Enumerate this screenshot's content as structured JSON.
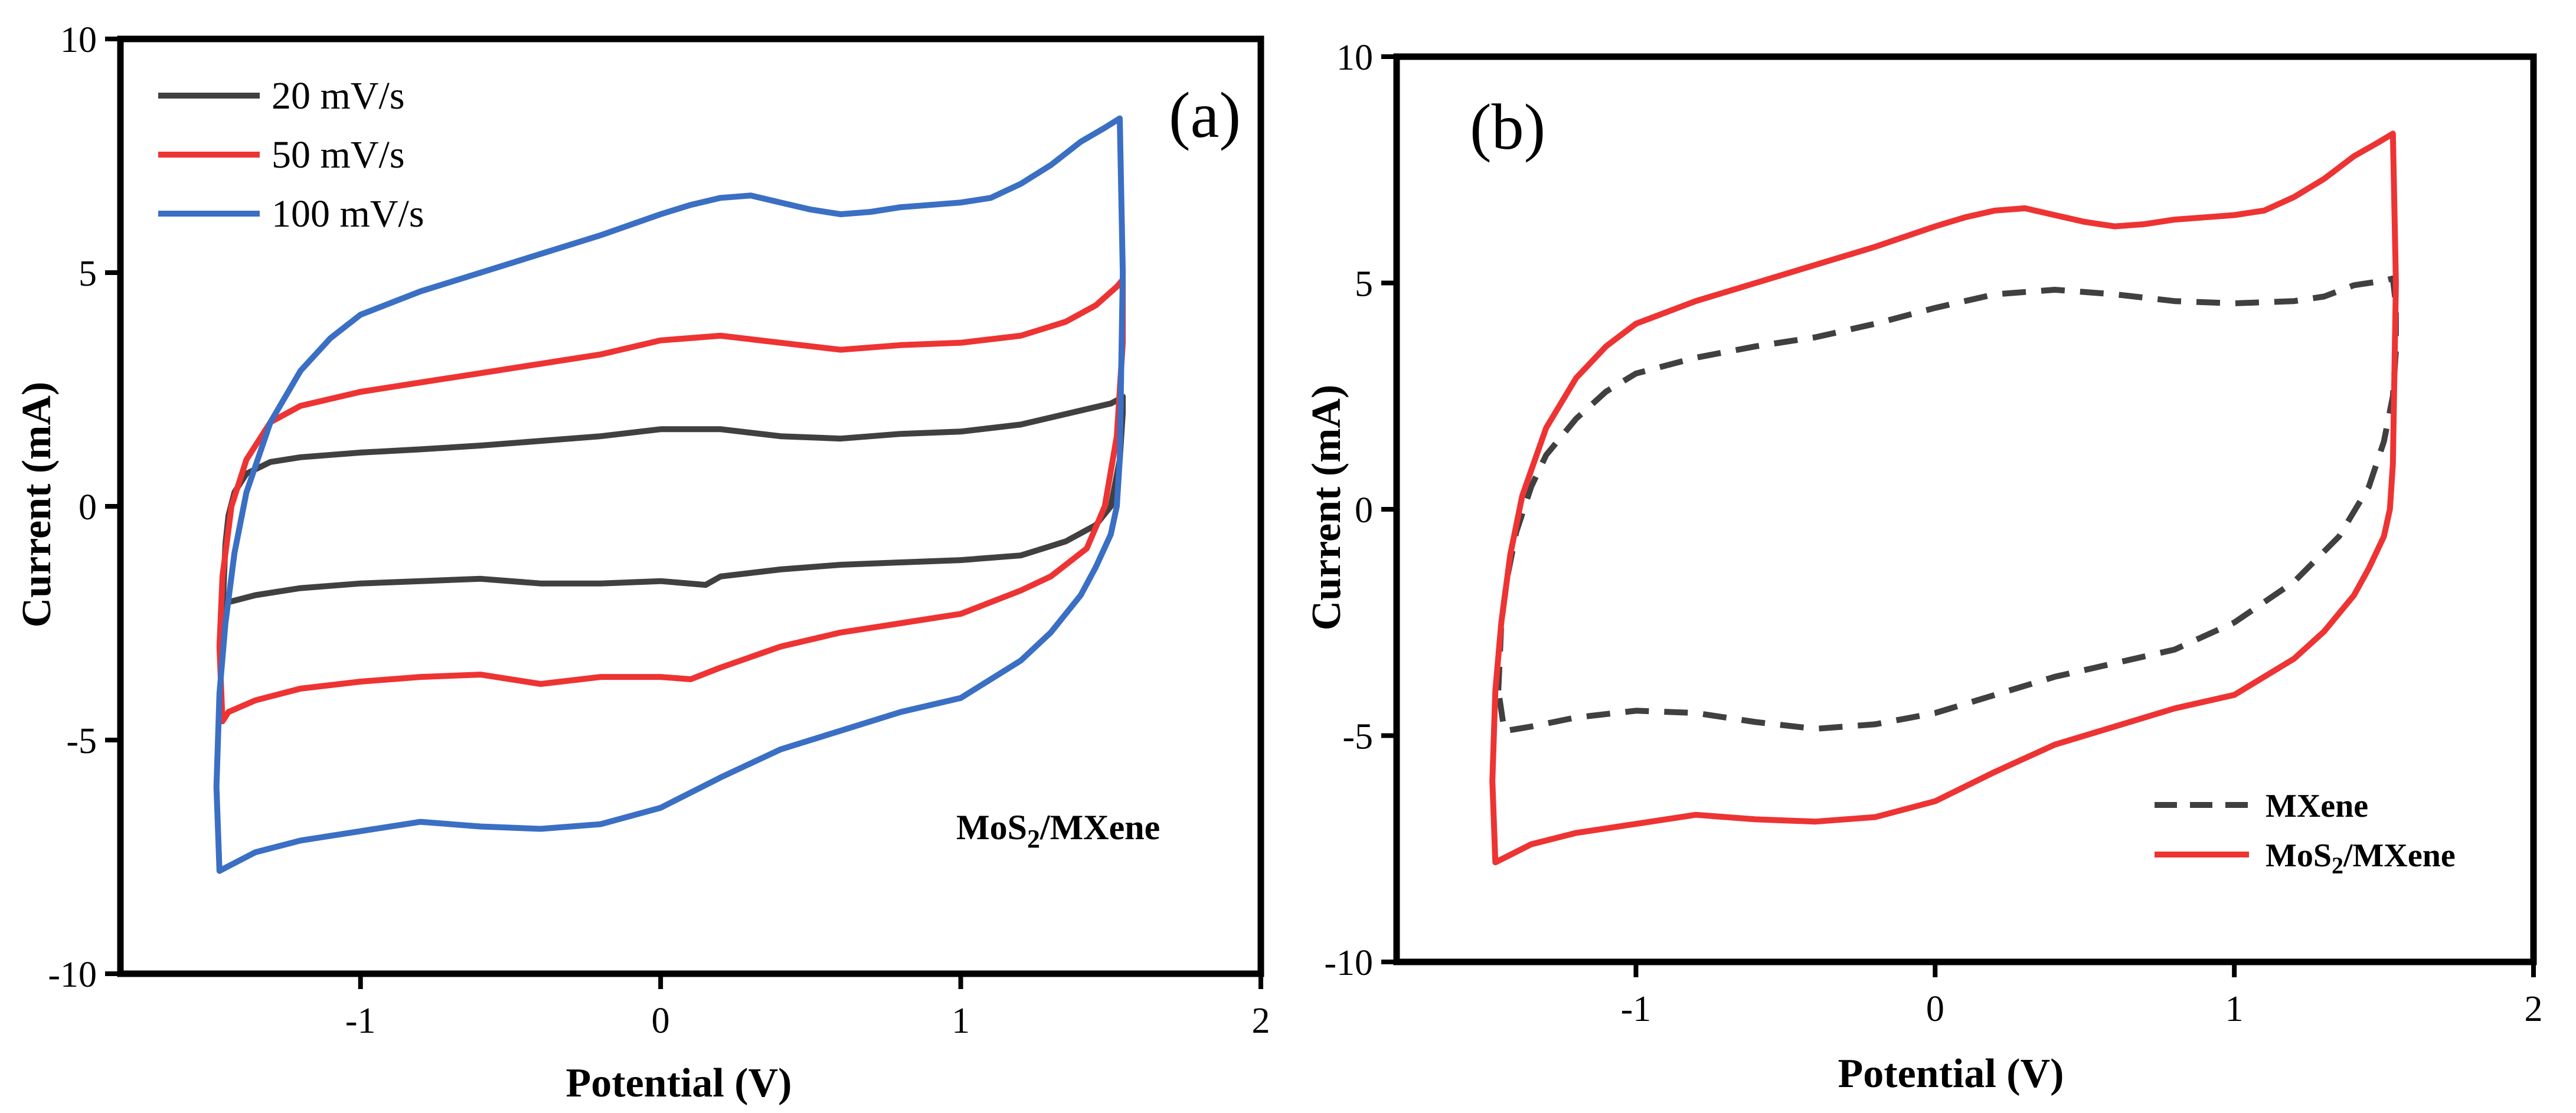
{
  "chart_data": [
    {
      "panel": "(a)",
      "type": "line",
      "xlabel": "Potential (V)",
      "ylabel": "Current (mA)",
      "xlim": [
        -1.8,
        2
      ],
      "ylim": [
        -10,
        10
      ],
      "xticks": [
        -1,
        0,
        1,
        2
      ],
      "yticks": [
        -10,
        -5,
        0,
        5,
        10
      ],
      "xtick_labels": [
        "-1",
        "0",
        "1",
        "2"
      ],
      "ytick_labels": [
        "-10",
        "-5",
        "0",
        "5",
        "10"
      ],
      "legend_position": "top-left",
      "annotation": {
        "prefix": "MoS",
        "sub": "2",
        "suffix": "/MXene"
      },
      "series": [
        {
          "name": "20 mV/s",
          "color": "#404040",
          "dash": "solid",
          "x": [
            -1.45,
            -1.44,
            -1.42,
            -1.38,
            -1.3,
            -1.2,
            -1.0,
            -0.8,
            -0.6,
            -0.4,
            -0.2,
            0.0,
            0.2,
            0.4,
            0.6,
            0.8,
            1.0,
            1.2,
            1.4,
            1.5,
            1.53,
            1.54,
            1.54,
            1.53,
            1.5,
            1.45,
            1.35,
            1.2,
            1.0,
            0.8,
            0.6,
            0.4,
            0.2,
            0.15,
            0.0,
            -0.2,
            -0.4,
            -0.6,
            -0.8,
            -1.0,
            -1.2,
            -1.35,
            -1.44,
            -1.46,
            -1.46,
            -1.45
          ],
          "y": [
            -0.8,
            -0.2,
            0.3,
            0.7,
            0.95,
            1.05,
            1.15,
            1.22,
            1.3,
            1.4,
            1.5,
            1.65,
            1.65,
            1.5,
            1.45,
            1.55,
            1.6,
            1.75,
            2.05,
            2.2,
            2.3,
            2.35,
            2.0,
            1.0,
            0.0,
            -0.4,
            -0.75,
            -1.05,
            -1.15,
            -1.2,
            -1.25,
            -1.35,
            -1.5,
            -1.68,
            -1.6,
            -1.65,
            -1.65,
            -1.55,
            -1.6,
            -1.65,
            -1.75,
            -1.9,
            -2.05,
            -2.2,
            -2.3,
            -0.8
          ]
        },
        {
          "name": "50 mV/s",
          "color": "#ee3333",
          "dash": "solid",
          "x": [
            -1.47,
            -1.46,
            -1.43,
            -1.38,
            -1.3,
            -1.2,
            -1.0,
            -0.8,
            -0.6,
            -0.4,
            -0.2,
            0.0,
            0.2,
            0.4,
            0.6,
            0.8,
            1.0,
            1.2,
            1.35,
            1.45,
            1.52,
            1.54,
            1.54,
            1.52,
            1.48,
            1.42,
            1.3,
            1.2,
            1.0,
            0.8,
            0.6,
            0.4,
            0.2,
            0.1,
            0.0,
            -0.2,
            -0.4,
            -0.6,
            -0.8,
            -1.0,
            -1.2,
            -1.35,
            -1.44,
            -1.46,
            -1.47
          ],
          "y": [
            -3.0,
            -1.5,
            0.0,
            1.0,
            1.8,
            2.15,
            2.45,
            2.65,
            2.85,
            3.05,
            3.25,
            3.55,
            3.65,
            3.5,
            3.35,
            3.45,
            3.5,
            3.65,
            3.95,
            4.3,
            4.7,
            4.85,
            3.5,
            1.5,
            0.0,
            -0.9,
            -1.5,
            -1.8,
            -2.3,
            -2.5,
            -2.7,
            -3.0,
            -3.45,
            -3.7,
            -3.65,
            -3.65,
            -3.8,
            -3.6,
            -3.65,
            -3.75,
            -3.9,
            -4.15,
            -4.4,
            -4.6,
            -3.0
          ]
        },
        {
          "name": "100 mV/s",
          "color": "#3a6fc4",
          "dash": "solid",
          "x": [
            -1.48,
            -1.47,
            -1.45,
            -1.42,
            -1.38,
            -1.3,
            -1.2,
            -1.1,
            -1.0,
            -0.8,
            -0.6,
            -0.4,
            -0.2,
            0.0,
            0.1,
            0.2,
            0.3,
            0.4,
            0.5,
            0.6,
            0.7,
            0.8,
            0.9,
            1.0,
            1.1,
            1.2,
            1.3,
            1.4,
            1.48,
            1.53,
            1.54,
            1.53,
            1.52,
            1.5,
            1.45,
            1.4,
            1.3,
            1.2,
            1.0,
            0.8,
            0.6,
            0.4,
            0.2,
            0.0,
            -0.2,
            -0.4,
            -0.6,
            -0.8,
            -1.0,
            -1.2,
            -1.35,
            -1.44,
            -1.47,
            -1.48
          ],
          "y": [
            -6.0,
            -4.0,
            -2.5,
            -1.0,
            0.3,
            1.8,
            2.9,
            3.6,
            4.1,
            4.6,
            5.0,
            5.4,
            5.8,
            6.25,
            6.45,
            6.6,
            6.65,
            6.5,
            6.35,
            6.25,
            6.3,
            6.4,
            6.45,
            6.5,
            6.6,
            6.9,
            7.3,
            7.8,
            8.1,
            8.3,
            5.0,
            1.0,
            0.0,
            -0.6,
            -1.3,
            -1.9,
            -2.7,
            -3.3,
            -4.1,
            -4.4,
            -4.8,
            -5.2,
            -5.8,
            -6.45,
            -6.8,
            -6.9,
            -6.85,
            -6.75,
            -6.95,
            -7.15,
            -7.4,
            -7.7,
            -7.8,
            -6.0
          ]
        }
      ]
    },
    {
      "panel": "(b)",
      "type": "line",
      "xlabel": "Potential (V)",
      "ylabel": "Current (mA)",
      "xlim": [
        -1.8,
        2
      ],
      "ylim": [
        -10,
        10
      ],
      "xticks": [
        -1,
        0,
        1,
        2
      ],
      "yticks": [
        -10,
        -5,
        0,
        5,
        10
      ],
      "xtick_labels": [
        "-1",
        "0",
        "1",
        "2"
      ],
      "ytick_labels": [
        "-10",
        "-5",
        "0",
        "5",
        "10"
      ],
      "legend_position": "bottom-right",
      "series": [
        {
          "name": "MXene",
          "color": "#404040",
          "dash": "dashed",
          "x": [
            -1.46,
            -1.45,
            -1.43,
            -1.4,
            -1.35,
            -1.3,
            -1.2,
            -1.1,
            -1.0,
            -0.8,
            -0.6,
            -0.4,
            -0.2,
            0.0,
            0.2,
            0.3,
            0.4,
            0.6,
            0.8,
            1.0,
            1.2,
            1.3,
            1.4,
            1.5,
            1.53,
            1.54,
            1.54,
            1.53,
            1.5,
            1.45,
            1.35,
            1.2,
            1.0,
            0.8,
            0.6,
            0.4,
            0.2,
            0.0,
            -0.2,
            -0.4,
            -0.6,
            -0.8,
            -1.0,
            -1.2,
            -1.35,
            -1.44,
            -1.46
          ],
          "y": [
            -4.0,
            -2.5,
            -1.5,
            -0.5,
            0.5,
            1.2,
            2.0,
            2.6,
            3.0,
            3.35,
            3.6,
            3.8,
            4.1,
            4.45,
            4.75,
            4.8,
            4.85,
            4.75,
            4.6,
            4.55,
            4.6,
            4.7,
            4.95,
            5.05,
            5.1,
            4.5,
            3.5,
            2.5,
            1.5,
            0.5,
            -0.6,
            -1.6,
            -2.5,
            -3.1,
            -3.4,
            -3.7,
            -4.1,
            -4.5,
            -4.75,
            -4.85,
            -4.7,
            -4.5,
            -4.45,
            -4.6,
            -4.8,
            -4.9,
            -4.0
          ]
        },
        {
          "name": "MoS2/MXene",
          "sub_prefix": "MoS",
          "sub_digit": "2",
          "sub_suffix": "/MXene",
          "color": "#ee3333",
          "dash": "solid",
          "x": [
            -1.48,
            -1.47,
            -1.45,
            -1.42,
            -1.38,
            -1.3,
            -1.2,
            -1.1,
            -1.0,
            -0.8,
            -0.6,
            -0.4,
            -0.2,
            0.0,
            0.1,
            0.2,
            0.3,
            0.4,
            0.5,
            0.6,
            0.7,
            0.8,
            0.9,
            1.0,
            1.1,
            1.2,
            1.3,
            1.4,
            1.48,
            1.53,
            1.54,
            1.53,
            1.52,
            1.5,
            1.45,
            1.4,
            1.3,
            1.2,
            1.0,
            0.8,
            0.6,
            0.4,
            0.2,
            0.0,
            -0.2,
            -0.4,
            -0.6,
            -0.8,
            -1.0,
            -1.2,
            -1.35,
            -1.44,
            -1.47,
            -1.48
          ],
          "y": [
            -6.0,
            -4.0,
            -2.5,
            -1.0,
            0.3,
            1.8,
            2.9,
            3.6,
            4.1,
            4.6,
            5.0,
            5.4,
            5.8,
            6.25,
            6.45,
            6.6,
            6.65,
            6.5,
            6.35,
            6.25,
            6.3,
            6.4,
            6.45,
            6.5,
            6.6,
            6.9,
            7.3,
            7.8,
            8.1,
            8.3,
            5.0,
            1.0,
            0.0,
            -0.6,
            -1.3,
            -1.9,
            -2.7,
            -3.3,
            -4.1,
            -4.4,
            -4.8,
            -5.2,
            -5.8,
            -6.45,
            -6.8,
            -6.9,
            -6.85,
            -6.75,
            -6.95,
            -7.15,
            -7.4,
            -7.7,
            -7.8,
            -6.0
          ]
        }
      ]
    }
  ]
}
